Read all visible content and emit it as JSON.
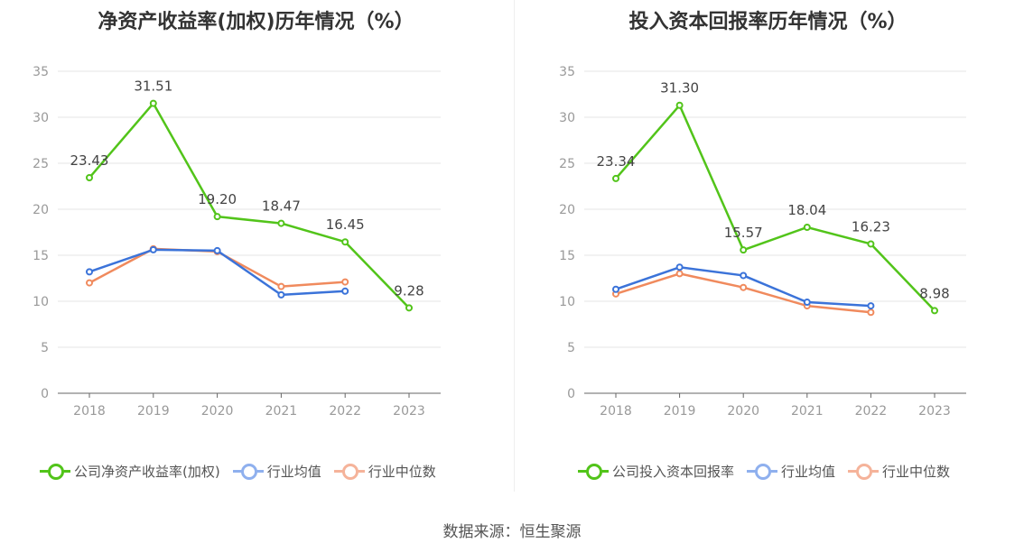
{
  "chart_data": [
    {
      "type": "line",
      "title": "净资产收益率(加权)历年情况（%）",
      "categories": [
        "2018",
        "2019",
        "2020",
        "2021",
        "2022",
        "2023"
      ],
      "ylim": [
        0,
        35
      ],
      "yticks": [
        0,
        5,
        10,
        15,
        20,
        25,
        30,
        35
      ],
      "grid": true,
      "legend_position": "bottom",
      "series": [
        {
          "name": "公司净资产收益率(加权)",
          "color": "#52c41a",
          "values": [
            23.43,
            31.51,
            19.2,
            18.47,
            16.45,
            9.28
          ],
          "labels": [
            "23.43",
            "31.51",
            "19.20",
            "18.47",
            "16.45",
            "9.28"
          ]
        },
        {
          "name": "行业均值",
          "color": "#3b73d9",
          "values": [
            13.2,
            15.6,
            15.5,
            10.7,
            11.1,
            null
          ]
        },
        {
          "name": "行业中位数",
          "color": "#f08a5d",
          "values": [
            12.0,
            15.7,
            15.4,
            11.6,
            12.1,
            null
          ]
        }
      ]
    },
    {
      "type": "line",
      "title": "投入资本回报率历年情况（%）",
      "categories": [
        "2018",
        "2019",
        "2020",
        "2021",
        "2022",
        "2023"
      ],
      "ylim": [
        0,
        35
      ],
      "yticks": [
        0,
        5,
        10,
        15,
        20,
        25,
        30,
        35
      ],
      "grid": true,
      "legend_position": "bottom",
      "series": [
        {
          "name": "公司投入资本回报率",
          "color": "#52c41a",
          "values": [
            23.34,
            31.3,
            15.57,
            18.04,
            16.23,
            8.98
          ],
          "labels": [
            "23.34",
            "31.30",
            "15.57",
            "18.04",
            "16.23",
            "8.98"
          ]
        },
        {
          "name": "行业均值",
          "color": "#3b73d9",
          "values": [
            11.3,
            13.7,
            12.8,
            9.9,
            9.5,
            null
          ]
        },
        {
          "name": "行业中位数",
          "color": "#f08a5d",
          "values": [
            10.8,
            13.0,
            11.5,
            9.5,
            8.8,
            null
          ]
        }
      ]
    }
  ],
  "legend_marker_colors": [
    "#52c41a",
    "#8fb0ee",
    "#f5b39a"
  ],
  "source": "数据来源：恒生聚源"
}
